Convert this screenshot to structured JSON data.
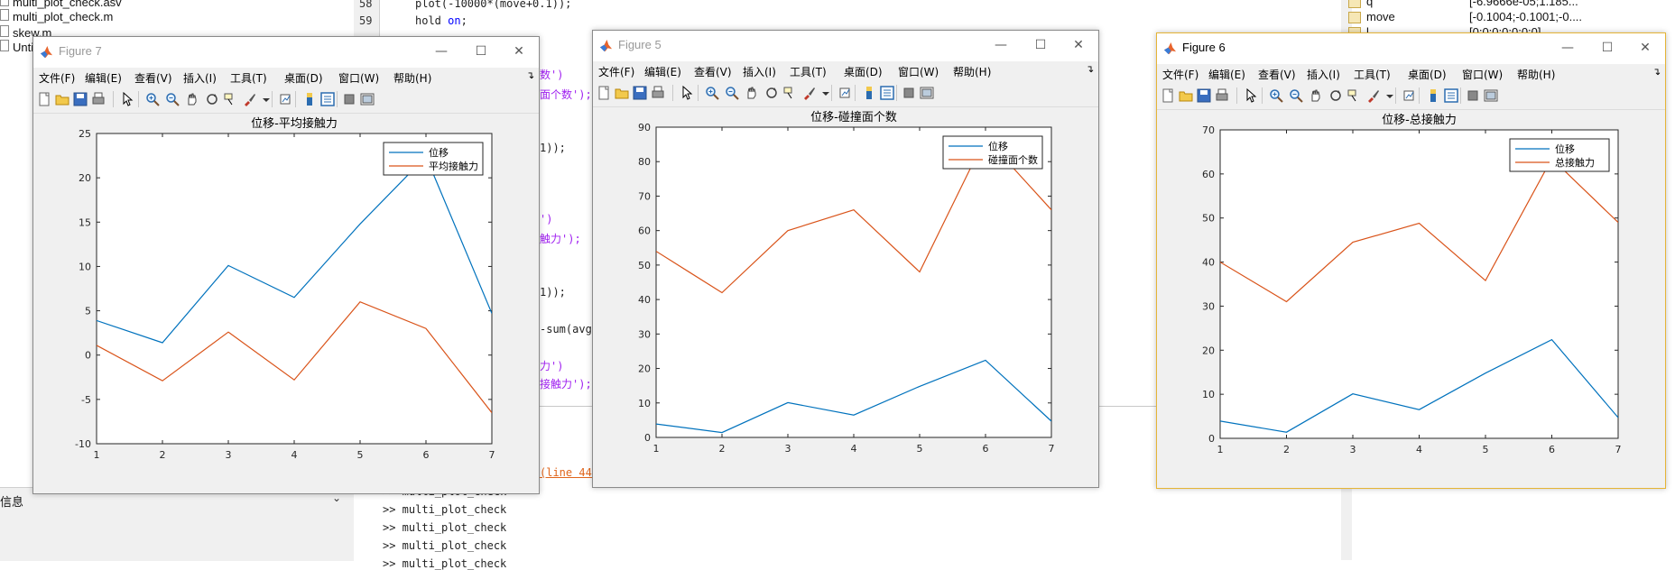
{
  "background": {
    "files": [
      "multi_plot_check.asv",
      "multi_plot_check.m",
      "skew.m",
      "Untit"
    ],
    "left_panel_label": "信息",
    "editor": {
      "line_numbers": [
        "58",
        "59"
      ],
      "lines": [
        {
          "text": "plot(-10000*(move+0.1));"
        },
        {
          "text": "hold ",
          "kw": "on",
          "tail": ";"
        }
      ],
      "snippets": [
        {
          "text": "数')",
          "cls": "purple"
        },
        {
          "text": "面个数');",
          "cls": "purple"
        },
        {
          "text": "1));",
          "cls": ""
        },
        {
          "text": "')",
          "cls": "purple"
        },
        {
          "text": "触力');",
          "cls": "purple"
        },
        {
          "text": "1));",
          "cls": ""
        },
        {
          "text": "-sum(avgf",
          "cls": ""
        },
        {
          "text": "力')",
          "cls": "purple"
        },
        {
          "text": "接触力');",
          "cls": "purple"
        }
      ]
    },
    "command_window": {
      "error_link": "(line 44)",
      "history": [
        ">> multi_plot_check",
        ">> multi_plot_check",
        ">> multi_plot_check",
        ">> multi_plot_check",
        ">> multi_plot_check"
      ]
    },
    "workspace": {
      "rows": [
        {
          "name": "q",
          "value": "[-6.9666e-05;1.185..."
        },
        {
          "name": "move",
          "value": "[-0.1004;-0.1001;-0...."
        },
        {
          "name": "l",
          "value": "[0;0;0;0;0;0;0]"
        }
      ]
    }
  },
  "menus": [
    "文件(F)",
    "编辑(E)",
    "查看(V)",
    "插入(I)",
    "工具(T)",
    "桌面(D)",
    "窗口(W)",
    "帮助(H)"
  ],
  "window_controls": {
    "minimize": "—",
    "maximize": "☐",
    "close": "✕"
  },
  "toolbar_icons": [
    "new-figure-icon",
    "open-icon",
    "save-icon",
    "print-icon",
    "select-arrow-icon",
    "zoom-in-icon",
    "zoom-out-icon",
    "pan-hand-icon",
    "rotate-3d-icon",
    "data-cursor-icon",
    "brush-icon",
    "brush-dropdown-icon",
    "link-plot-icon",
    "colorbar-icon",
    "legend-icon",
    "hide-plot-tools-icon",
    "show-plot-tools-icon"
  ],
  "colors": {
    "series1": "#0072bd",
    "series2": "#d95319",
    "active_border": "#e5b436"
  },
  "figures": [
    {
      "id": "fig7",
      "title": "Figure 7",
      "active": false,
      "chart_data": {
        "type": "line",
        "title": "位移-平均接触力",
        "x": [
          1,
          2,
          3,
          4,
          5,
          6,
          7
        ],
        "xlim": [
          1,
          7
        ],
        "ylim": [
          -10,
          25
        ],
        "yticks": [
          -10,
          -5,
          0,
          5,
          10,
          15,
          20,
          25
        ],
        "xticks": [
          1,
          2,
          3,
          4,
          5,
          6,
          7
        ],
        "series": [
          {
            "name": "位移",
            "values": [
              3.9,
              1.4,
              10.1,
              6.5,
              14.8,
              22.4,
              4.7
            ]
          },
          {
            "name": "平均接触力",
            "values": [
              1.1,
              -2.9,
              2.6,
              -2.8,
              6.0,
              3.0,
              -6.5
            ]
          }
        ],
        "legend": "top-right"
      }
    },
    {
      "id": "fig5",
      "title": "Figure 5",
      "active": false,
      "chart_data": {
        "type": "line",
        "title": "位移-碰撞面个数",
        "x": [
          1,
          2,
          3,
          4,
          5,
          6,
          7
        ],
        "xlim": [
          1,
          7
        ],
        "ylim": [
          0,
          90
        ],
        "yticks": [
          0,
          10,
          20,
          30,
          40,
          50,
          60,
          70,
          80,
          90
        ],
        "xticks": [
          1,
          2,
          3,
          4,
          5,
          6,
          7
        ],
        "series": [
          {
            "name": "位移",
            "values": [
              3.9,
              1.4,
              10.1,
              6.5,
              14.8,
              22.4,
              4.7
            ]
          },
          {
            "name": "碰撞面个数",
            "values": [
              54,
              42,
              60,
              66,
              48,
              87,
              66
            ]
          }
        ],
        "legend": "top-right"
      }
    },
    {
      "id": "fig6",
      "title": "Figure 6",
      "active": true,
      "chart_data": {
        "type": "line",
        "title": "位移-总接触力",
        "x": [
          1,
          2,
          3,
          4,
          5,
          6,
          7
        ],
        "xlim": [
          1,
          7
        ],
        "ylim": [
          0,
          70
        ],
        "yticks": [
          0,
          10,
          20,
          30,
          40,
          50,
          60,
          70
        ],
        "xticks": [
          1,
          2,
          3,
          4,
          5,
          6,
          7
        ],
        "series": [
          {
            "name": "位移",
            "values": [
              3.9,
              1.4,
              10.1,
              6.5,
              14.8,
              22.4,
              4.7
            ]
          },
          {
            "name": "总接触力",
            "values": [
              40,
              31,
              44.5,
              48.8,
              35.8,
              63.5,
              49
            ]
          }
        ],
        "legend": "top-right"
      }
    }
  ]
}
